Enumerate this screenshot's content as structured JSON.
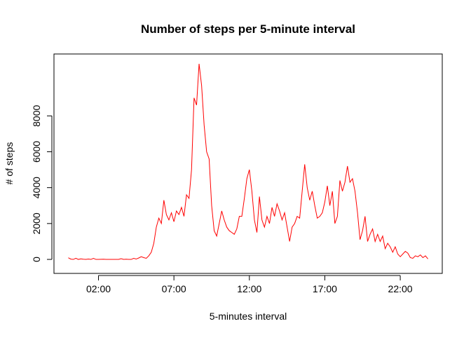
{
  "chart_data": {
    "type": "line",
    "title": "Number of steps per 5-minute interval",
    "xlabel": "5-minutes interval",
    "ylabel": "# of steps",
    "color": "#ff0000",
    "x": [
      0,
      10,
      20,
      30,
      40,
      50,
      60,
      70,
      80,
      90,
      100,
      110,
      120,
      130,
      140,
      150,
      160,
      170,
      180,
      190,
      200,
      210,
      220,
      230,
      240,
      250,
      260,
      270,
      280,
      290,
      300,
      310,
      320,
      330,
      340,
      350,
      360,
      370,
      380,
      390,
      400,
      410,
      420,
      430,
      440,
      450,
      460,
      470,
      480,
      490,
      500,
      510,
      520,
      530,
      540,
      550,
      560,
      570,
      580,
      590,
      600,
      610,
      620,
      630,
      640,
      650,
      660,
      670,
      680,
      690,
      700,
      710,
      720,
      730,
      740,
      750,
      760,
      770,
      780,
      790,
      800,
      810,
      820,
      830,
      840,
      850,
      860,
      870,
      880,
      890,
      900,
      910,
      920,
      930,
      940,
      950,
      960,
      970,
      980,
      990,
      1000,
      1010,
      1020,
      1030,
      1040,
      1050,
      1060,
      1070,
      1080,
      1090,
      1100,
      1110,
      1120,
      1130,
      1140,
      1150,
      1160,
      1170,
      1180,
      1190,
      1200,
      1210,
      1220,
      1230,
      1240,
      1250,
      1260,
      1270,
      1280,
      1290,
      1300,
      1310,
      1320,
      1330,
      1340,
      1350,
      1360,
      1370,
      1380,
      1390,
      1400,
      1410,
      1420,
      1430
    ],
    "values": [
      91,
      18,
      0,
      65,
      0,
      30,
      10,
      0,
      20,
      0,
      60,
      0,
      0,
      5,
      10,
      0,
      0,
      0,
      0,
      0,
      0,
      40,
      0,
      10,
      0,
      0,
      60,
      20,
      80,
      150,
      100,
      60,
      200,
      400,
      900,
      1800,
      2300,
      2000,
      3300,
      2500,
      2200,
      2600,
      2100,
      2700,
      2500,
      2900,
      2400,
      3600,
      3400,
      5000,
      9000,
      8600,
      10900,
      9700,
      7500,
      6000,
      5600,
      3000,
      1600,
      1300,
      2000,
      2700,
      2200,
      1800,
      1600,
      1500,
      1400,
      1700,
      2400,
      2400,
      3400,
      4500,
      5000,
      3800,
      2200,
      1500,
      3500,
      2200,
      1800,
      2400,
      2000,
      2900,
      2400,
      3100,
      2700,
      2200,
      2600,
      1800,
      1000,
      1800,
      2000,
      2400,
      2300,
      3800,
      5300,
      4000,
      3300,
      3800,
      3000,
      2300,
      2400,
      2600,
      3200,
      4100,
      3000,
      3800,
      2000,
      2400,
      4400,
      3800,
      4300,
      5200,
      4300,
      4500,
      3800,
      2600,
      1100,
      1600,
      2400,
      1000,
      1400,
      1700,
      1000,
      1400,
      1000,
      1300,
      600,
      900,
      700,
      400,
      700,
      300,
      150,
      300,
      450,
      350,
      100,
      60,
      200,
      150,
      250,
      100,
      200,
      30
    ],
    "xlim": [
      -57,
      1487
    ],
    "xticks": [
      {
        "value": 120,
        "label": "02:00"
      },
      {
        "value": 420,
        "label": "07:00"
      },
      {
        "value": 720,
        "label": "12:00"
      },
      {
        "value": 1020,
        "label": "17:00"
      },
      {
        "value": 1320,
        "label": "22:00"
      }
    ],
    "ylim": [
      -780,
      11450
    ],
    "yticks": [
      0,
      2000,
      4000,
      6000,
      8000
    ],
    "grid": false
  }
}
